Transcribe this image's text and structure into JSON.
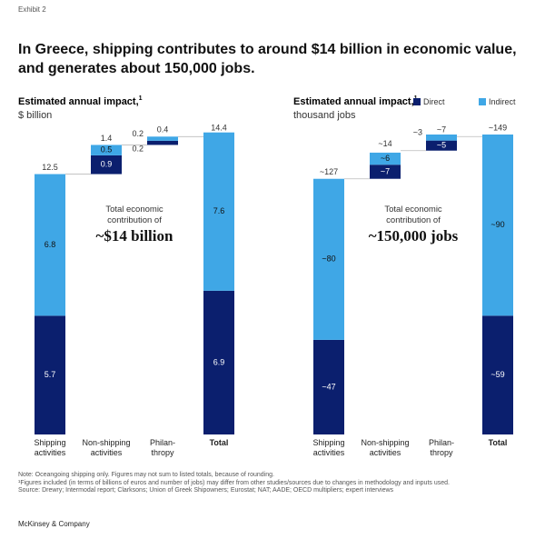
{
  "header": {
    "label": "Exhibit 2",
    "title": "In Greece, shipping contributes to around $14 billion in economic value, and generates about 150,000 jobs."
  },
  "chart_data": [
    {
      "type": "waterfall",
      "subtitle": "Estimated annual impact,",
      "subtitle_note": "1",
      "unit": "$ billion",
      "categories": [
        "Shipping\nactivities",
        "Non-shipping\nactivities",
        "Philan-\nthropy",
        "Total"
      ],
      "series": [
        {
          "color": "#0b1f6e",
          "values": [
            5.7,
            0.9,
            0.2,
            6.9
          ]
        },
        {
          "color": "#3fa7e6",
          "values": [
            6.8,
            0.5,
            0.2,
            7.6
          ]
        }
      ],
      "totals": [
        12.5,
        1.4,
        0.4,
        14.4
      ],
      "annotation": "Total economic\ncontribution of",
      "annotation_value": "~$14 billion",
      "ylim": [
        0,
        14.4
      ]
    },
    {
      "type": "waterfall",
      "subtitle": "Estimated annual impact,",
      "subtitle_note": "1",
      "unit": "thousand jobs",
      "categories": [
        "Shipping\nactivities",
        "Non-shipping\nactivities",
        "Philan-\nthropy",
        "Total"
      ],
      "series": [
        {
          "name": "Direct",
          "color": "#0b1f6e",
          "values": [
            47,
            7,
            5,
            59
          ],
          "value_labels": [
            "~47",
            "~7",
            "~5",
            "~59"
          ]
        },
        {
          "name": "Indirect",
          "color": "#3fa7e6",
          "values": [
            80,
            6,
            3,
            90
          ],
          "value_labels": [
            "~80",
            "~6",
            "~3",
            "~90"
          ]
        }
      ],
      "totals": [
        127,
        14,
        7,
        149
      ],
      "total_labels": [
        "~127",
        "~14",
        "~7",
        "~149"
      ],
      "annotation": "Total economic\ncontribution of",
      "annotation_value": "~150,000 jobs",
      "ylim": [
        0,
        149
      ]
    }
  ],
  "notes": [
    "Note: Oceangoing shipping only. Figures may not sum to listed totals, because of rounding.",
    "¹Figures included (in terms of billions of euros and number of jobs) may differ from other studies/sources due to changes in methodology and inputs used.",
    "Source: Drewry; Intermodal report; Clarksons; Union of Greek Shipowners; Eurostat; NAT; AADE; OECD multipliers; expert interviews"
  ],
  "footer": "McKinsey & Company"
}
